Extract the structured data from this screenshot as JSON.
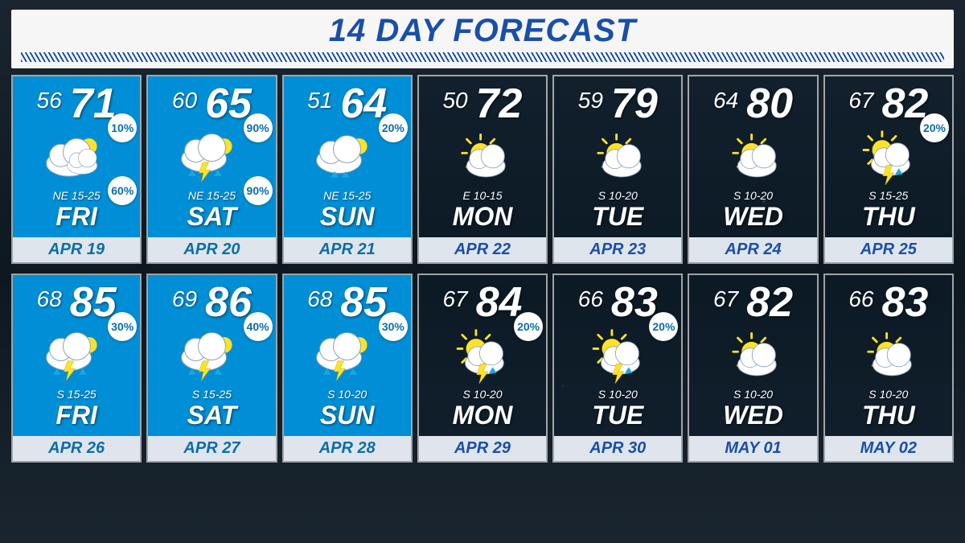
{
  "title": "14 DAY FORECAST",
  "colors": {
    "title_color": "#1a4fa8",
    "highlight_bg": "#008fd6",
    "plain_bg": "rgba(10,30,50,0.30)",
    "date_text_highlight": "#0a6ea8",
    "date_text_plain": "#1a4fa8",
    "badge_text": "#0a6ea8",
    "sun": "#ffe227",
    "cloud": "#ffffff",
    "cloud_stroke": "#8aa0b8",
    "bolt": "#ffe227",
    "rain": "#1aa8e0"
  },
  "days": [
    {
      "lo": "56",
      "hi": "71",
      "wind": "NE 15-25",
      "dow": "FRI",
      "date": "APR 19",
      "hl": true,
      "icon": "mcloudy",
      "p1": "10%",
      "p2": "60%"
    },
    {
      "lo": "60",
      "hi": "65",
      "wind": "NE 15-25",
      "dow": "SAT",
      "date": "APR 20",
      "hl": true,
      "icon": "storm",
      "p1": "90%",
      "p2": "90%"
    },
    {
      "lo": "51",
      "hi": "64",
      "wind": "NE 15-25",
      "dow": "SUN",
      "date": "APR 21",
      "hl": true,
      "icon": "showers",
      "p1": "20%",
      "p2": ""
    },
    {
      "lo": "50",
      "hi": "72",
      "wind": "E 10-15",
      "dow": "MON",
      "date": "APR 22",
      "hl": false,
      "icon": "psunny",
      "p1": "",
      "p2": ""
    },
    {
      "lo": "59",
      "hi": "79",
      "wind": "S 10-20",
      "dow": "TUE",
      "date": "APR 23",
      "hl": false,
      "icon": "psunny",
      "p1": "",
      "p2": ""
    },
    {
      "lo": "64",
      "hi": "80",
      "wind": "S 10-20",
      "dow": "WED",
      "date": "APR 24",
      "hl": false,
      "icon": "psunny",
      "p1": "",
      "p2": ""
    },
    {
      "lo": "67",
      "hi": "82",
      "wind": "S 15-25",
      "dow": "THU",
      "date": "APR 25",
      "hl": false,
      "icon": "isostorm",
      "p1": "20%",
      "p2": ""
    },
    {
      "lo": "68",
      "hi": "85",
      "wind": "S 15-25",
      "dow": "FRI",
      "date": "APR 26",
      "hl": true,
      "icon": "storm",
      "p1": "30%",
      "p2": ""
    },
    {
      "lo": "69",
      "hi": "86",
      "wind": "S 15-25",
      "dow": "SAT",
      "date": "APR 27",
      "hl": true,
      "icon": "storm",
      "p1": "40%",
      "p2": ""
    },
    {
      "lo": "68",
      "hi": "85",
      "wind": "S 10-20",
      "dow": "SUN",
      "date": "APR 28",
      "hl": true,
      "icon": "storm",
      "p1": "30%",
      "p2": ""
    },
    {
      "lo": "67",
      "hi": "84",
      "wind": "S 10-20",
      "dow": "MON",
      "date": "APR 29",
      "hl": false,
      "icon": "isostorm",
      "p1": "20%",
      "p2": ""
    },
    {
      "lo": "66",
      "hi": "83",
      "wind": "S 10-20",
      "dow": "TUE",
      "date": "APR 30",
      "hl": false,
      "icon": "isostorm",
      "p1": "20%",
      "p2": ""
    },
    {
      "lo": "67",
      "hi": "82",
      "wind": "S 10-20",
      "dow": "WED",
      "date": "MAY 01",
      "hl": false,
      "icon": "psunny",
      "p1": "",
      "p2": ""
    },
    {
      "lo": "66",
      "hi": "83",
      "wind": "S 10-20",
      "dow": "THU",
      "date": "MAY 02",
      "hl": false,
      "icon": "psunny",
      "p1": "",
      "p2": ""
    }
  ]
}
